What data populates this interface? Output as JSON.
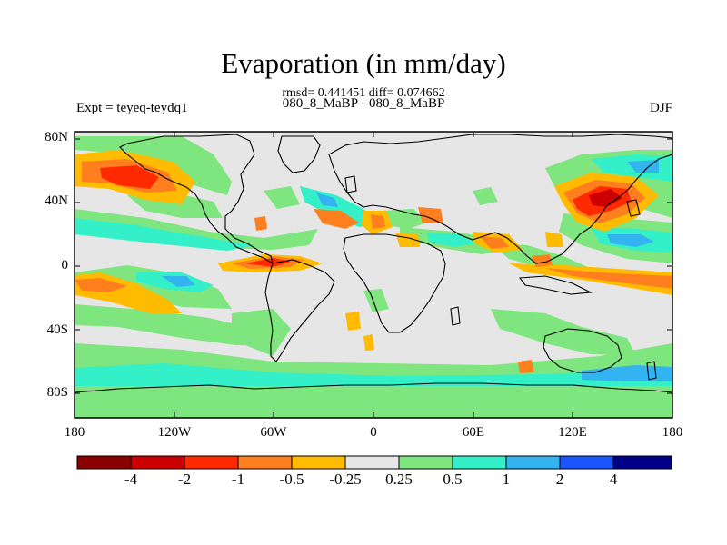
{
  "title": "Evaporation (in mm/day)",
  "stats_line": "rmsd= 0.441451 diff= 0.074662",
  "experiments_line": "080_8_MaBP - 080_8_MaBP",
  "left_label": "Expt = teyeq-teydq1",
  "right_label": "DJF",
  "lat_labels": [
    "80N",
    "40N",
    "0",
    "40S",
    "80S"
  ],
  "lon_labels": [
    "180",
    "120W",
    "60W",
    "0",
    "60E",
    "120E",
    "180"
  ],
  "colorbar": {
    "colors": [
      "#8b0000",
      "#cc0000",
      "#ff2a00",
      "#ff7f1f",
      "#ffbb00",
      "#e6e6e6",
      "#7fe57f",
      "#33f0c8",
      "#33b4f0",
      "#1a55ff",
      "#00008b"
    ],
    "labels": [
      "-4",
      "-2",
      "-1",
      "-0.5",
      "-0.25",
      "0.25",
      "0.5",
      "1",
      "2",
      "4"
    ]
  }
}
